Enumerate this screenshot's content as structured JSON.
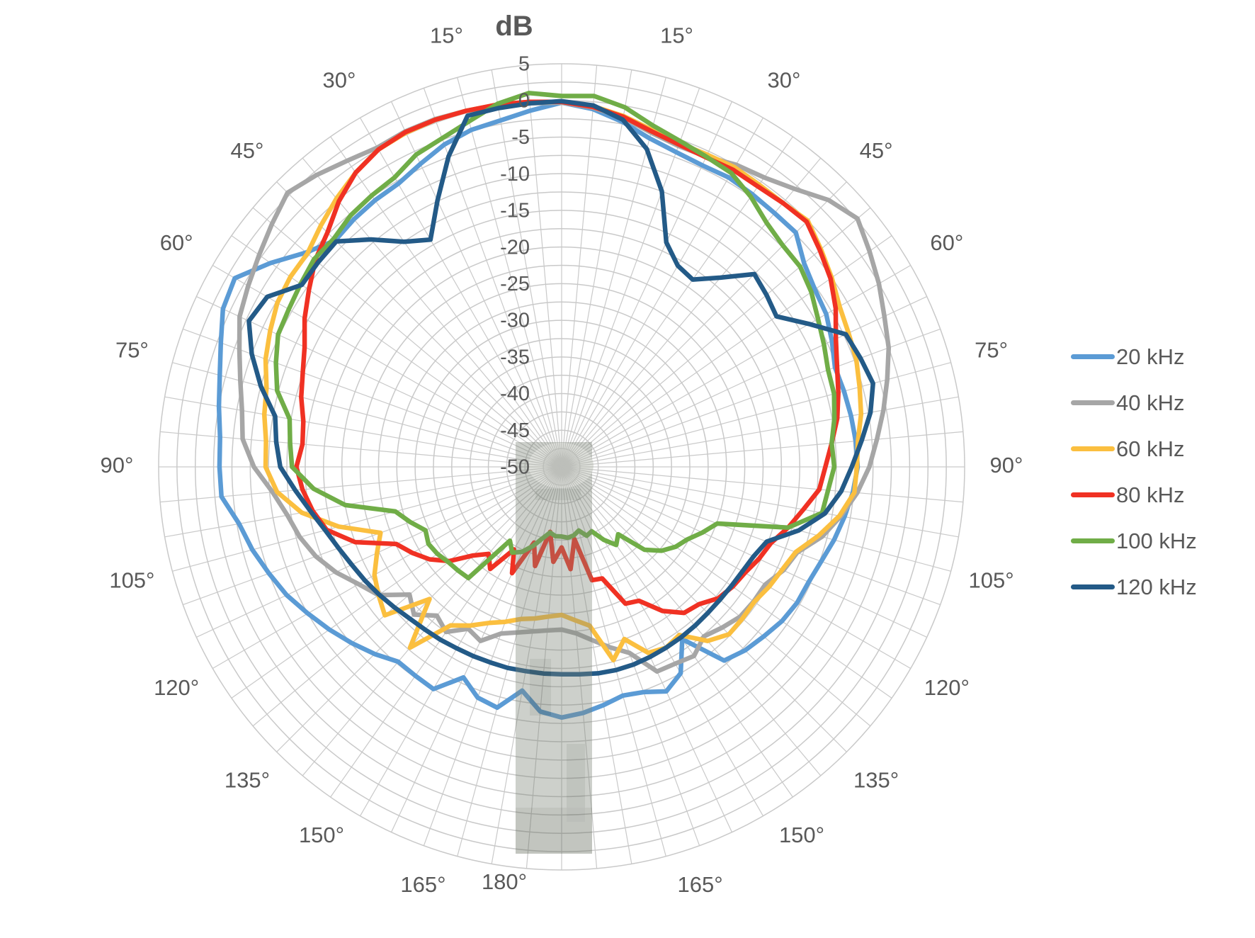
{
  "page": {
    "background": "#ffffff"
  },
  "styles": {
    "grid_color": "#C9C9C9",
    "label_color": "#595959",
    "series_stroke_width": 6.5
  },
  "chart_data": {
    "type": "line",
    "polar": true,
    "title": "dB",
    "radial_axis": {
      "title": "dB",
      "min": -50,
      "max": 5,
      "major_tick_step": 5,
      "minor_ring_step": 2.5,
      "tick_labels": [
        "5",
        "0",
        "-5",
        "-10",
        "-15",
        "-20",
        "-25",
        "-30",
        "-35",
        "-40",
        "-45",
        "-50"
      ]
    },
    "angular_axis": {
      "spoke_step_deg": 5,
      "label_step_deg": 15,
      "mirrored_labels": [
        "15°",
        "30°",
        "45°",
        "60°",
        "75°",
        "90°",
        "105°",
        "120°",
        "135°",
        "150°",
        "165°"
      ],
      "bottom_label": "180°",
      "mirrored_degs": [
        15,
        30,
        45,
        60,
        75,
        90,
        105,
        120,
        135,
        150,
        165
      ],
      "bottom_deg": 180
    },
    "legend": {
      "position": "right",
      "entries": [
        {
          "label": "20 kHz",
          "color": "#5B9BD5"
        },
        {
          "label": "40 kHz",
          "color": "#A6A6A6"
        },
        {
          "label": "60 kHz",
          "color": "#FBBF3F"
        },
        {
          "label": "80 kHz",
          "color": "#F03123"
        },
        {
          "label": "100 kHz",
          "color": "#70AD47"
        },
        {
          "label": "120 kHz",
          "color": "#235A87"
        }
      ]
    },
    "series": [
      {
        "name": "20 kHz",
        "color": "#5B9BD5",
        "angle_start_deg": -180,
        "angle_step_deg": 5,
        "values_db": [
          -15.8,
          -16.5,
          -19.0,
          -16.0,
          -16.5,
          -18.3,
          -15.0,
          -15.2,
          -15.3,
          -13.9,
          -12.6,
          -11.3,
          -10.0,
          -8.6,
          -7.5,
          -6.3,
          -5.3,
          -3.4,
          -3.3,
          -3.2,
          -2.5,
          -1.7,
          -0.5,
          1.0,
          1.5,
          -1.5,
          -4.5,
          -6.3,
          -5.9,
          -5.6,
          -5.4,
          -4.4,
          -3.2,
          -2.4,
          -2.0,
          -1.2,
          -0.3,
          -1.0,
          -2.2,
          -3.6,
          -4.3,
          -4.6,
          -4.4,
          -4.6,
          -4.8,
          -4.8,
          -6.8,
          -7.8,
          -8.3,
          -9.3,
          -10.3,
          -10.1,
          -9.9,
          -9.7,
          -9.6,
          -10.1,
          -10.8,
          -11.5,
          -12.3,
          -12.8,
          -12.9,
          -13.3,
          -14.0,
          -14.6,
          -15.5,
          -21.3,
          -17.5,
          -16.2,
          -17.3,
          -17.7,
          -17.0,
          -16.3,
          -15.8
        ]
      },
      {
        "name": "40 kHz",
        "color": "#A6A6A6",
        "angle_start_deg": -180,
        "angle_step_deg": 5,
        "values_db": [
          -27.8,
          -27.6,
          -27.2,
          -26.6,
          -25.8,
          -23.8,
          -24.5,
          -22.5,
          -23.5,
          -21.5,
          -22.9,
          -19.5,
          -18.0,
          -16.0,
          -14.3,
          -13.0,
          -12.0,
          -10.4,
          -8.0,
          -6.3,
          -5.7,
          -4.6,
          -3.2,
          -1.5,
          -0.6,
          0.4,
          1.6,
          2.9,
          2.0,
          1.0,
          0.3,
          0.5,
          0.5,
          0.3,
          0.0,
          -0.2,
          -0.3,
          -0.8,
          -1.6,
          -2.8,
          -3.4,
          -3.3,
          -2.4,
          -1.8,
          -0.5,
          1.5,
          2.7,
          1.3,
          0.0,
          -1.4,
          -2.5,
          -4.0,
          -5.4,
          -6.8,
          -8.0,
          -9.5,
          -11.3,
          -13.2,
          -15.8,
          -16.6,
          -17.9,
          -18.0,
          -18.2,
          -19.0,
          -19.8,
          -18.5,
          -19.0,
          -19.2,
          -23.0,
          -24.5,
          -26.0,
          -27.2,
          -27.8
        ]
      },
      {
        "name": "60 kHz",
        "color": "#FBBF3F",
        "angle_start_deg": -180,
        "angle_step_deg": 5,
        "values_db": [
          -29.8,
          -29.5,
          -29.0,
          -28.5,
          -27.5,
          -26.5,
          -25.0,
          -23.6,
          -17.8,
          -24.5,
          -18.5,
          -19.5,
          -20.5,
          -22.2,
          -23.7,
          -18.5,
          -14.0,
          -11.0,
          -9.6,
          -9.5,
          -8.8,
          -8.3,
          -7.0,
          -6.1,
          -5.2,
          -4.8,
          -4.7,
          -3.5,
          -2.2,
          -1.0,
          0.0,
          0.3,
          0.4,
          0.3,
          0.2,
          0.0,
          -0.2,
          -0.6,
          -1.4,
          -2.4,
          -3.0,
          -3.0,
          -2.8,
          -3.0,
          -3.0,
          -2.5,
          -3.8,
          -5.0,
          -6.2,
          -6.8,
          -7.2,
          -7.9,
          -8.5,
          -9.4,
          -9.7,
          -9.9,
          -11.5,
          -13.7,
          -16.0,
          -16.8,
          -17.3,
          -17.9,
          -17.8,
          -17.7,
          -19.0,
          -22.0,
          -21.5,
          -22.0,
          -25.0,
          -22.7,
          -28.0,
          -29.0,
          -29.8
        ]
      },
      {
        "name": "80 kHz",
        "color": "#F03123",
        "angle_start_deg": -180,
        "angle_step_deg": 5,
        "values_db": [
          -39.0,
          -37.0,
          -41.0,
          -36.0,
          -39.0,
          -34.0,
          -37.0,
          -33.0,
          -34.5,
          -32.9,
          -30.0,
          -28.0,
          -26.5,
          -25.1,
          -20.0,
          -16.8,
          -15.5,
          -14.5,
          -13.8,
          -14.5,
          -14.2,
          -13.2,
          -12.4,
          -11.3,
          -9.5,
          -7.9,
          -6.1,
          -4.8,
          -2.7,
          -1.0,
          0.0,
          0.4,
          0.4,
          0.3,
          0.2,
          0.0,
          -0.2,
          -0.7,
          -1.5,
          -2.6,
          -3.2,
          -3.4,
          -3.2,
          -3.3,
          -3.0,
          -2.7,
          -4.0,
          -5.2,
          -6.8,
          -8.7,
          -10.0,
          -10.9,
          -11.8,
          -13.0,
          -14.0,
          -14.7,
          -16.5,
          -18.0,
          -19.6,
          -20.3,
          -21.1,
          -21.5,
          -22.1,
          -23.5,
          -24.0,
          -26.0,
          -28.9,
          -29.4,
          -33.8,
          -34.0,
          -40.0,
          -36.0,
          -39.0
        ]
      },
      {
        "name": "100 kHz",
        "color": "#70AD47",
        "angle_start_deg": -180,
        "angle_step_deg": 5,
        "values_db": [
          -40.5,
          -40.5,
          -40.9,
          -39.9,
          -38.5,
          -37.2,
          -36.5,
          -37.7,
          -30.2,
          -30.0,
          -29.8,
          -29.3,
          -29.0,
          -29.5,
          -28.0,
          -26.5,
          -20.0,
          -16.0,
          -13.2,
          -12.8,
          -12.3,
          -9.8,
          -8.5,
          -7.3,
          -7.0,
          -6.5,
          -5.9,
          -6.0,
          -5.2,
          -4.8,
          -4.4,
          -3.0,
          -2.3,
          -1.2,
          0.3,
          1.2,
          0.6,
          0.8,
          -0.2,
          -1.8,
          -2.7,
          -3.3,
          -3.7,
          -5.0,
          -6.5,
          -7.3,
          -7.5,
          -8.4,
          -9.6,
          -10.5,
          -11.3,
          -11.5,
          -12.2,
          -13.0,
          -12.8,
          -13.5,
          -13.9,
          -18.0,
          -27.4,
          -28.8,
          -30.2,
          -31.0,
          -32.2,
          -34.0,
          -38.0,
          -37.0,
          -38.5,
          -40.3,
          -40.0,
          -41.0,
          -40.5,
          -40.3,
          -40.5
        ]
      },
      {
        "name": "120 kHz",
        "color": "#235A87",
        "angle_start_deg": -180,
        "angle_step_deg": 5,
        "values_db": [
          -21.7,
          -21.7,
          -21.7,
          -21.6,
          -21.6,
          -21.5,
          -21.4,
          -21.2,
          -21.0,
          -20.7,
          -20.2,
          -19.6,
          -19.0,
          -18.4,
          -17.6,
          -16.6,
          -15.2,
          -13.5,
          -11.6,
          -10.9,
          -10.3,
          -7.5,
          -5.0,
          -2.9,
          -3.6,
          -6.7,
          -6.6,
          -6.5,
          -9.5,
          -12.5,
          -14.2,
          -9.9,
          -4.9,
          -0.4,
          -0.3,
          -0.2,
          -0.1,
          -0.5,
          -1.9,
          -5.1,
          -10.0,
          -16.2,
          -18.3,
          -18.8,
          -16.3,
          -12.8,
          -13.5,
          -14.2,
          -11.0,
          -7.2,
          -6.6,
          -6.0,
          -7.2,
          -8.9,
          -10.4,
          -11.7,
          -13.5,
          -16.5,
          -20.2,
          -21.1,
          -21.5,
          -21.7,
          -21.8,
          -21.8,
          -21.7,
          -21.6,
          -21.5,
          -21.4,
          -21.3,
          -21.3,
          -21.4,
          -21.6,
          -21.7
        ]
      }
    ],
    "overlay": {
      "description": "translucent 3D render of the ultrasonic transducer/microphone pole pointing downward from the plot center",
      "body_color": "#7d8578",
      "cap_color": "#aaafa3",
      "opacity": 0.38
    }
  }
}
